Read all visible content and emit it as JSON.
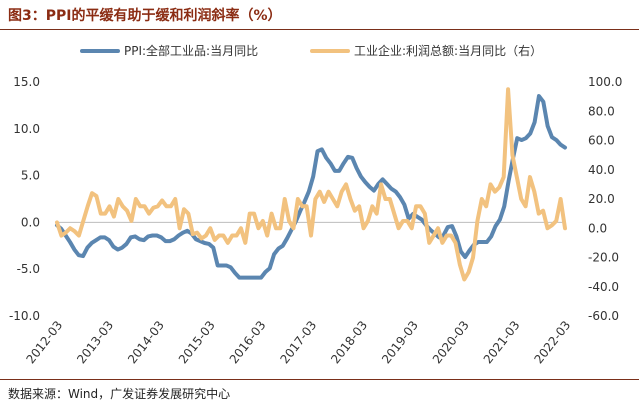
{
  "header": {
    "title": "图3：PPI的平缓有助于缓和利润斜率（%）"
  },
  "footer": {
    "source": "数据来源：Wind，广发证券发展研究中心"
  },
  "chart_data": {
    "type": "line",
    "x_tick_labels": [
      "2012-03",
      "2013-03",
      "2014-03",
      "2015-03",
      "2016-03",
      "2017-03",
      "2018-03",
      "2019-03",
      "2020-03",
      "2021-03",
      "2022-03"
    ],
    "x_start": "2012-03",
    "x_end": "2022-03",
    "left_axis": {
      "ticks": [
        "15.0",
        "10.0",
        "5.0",
        "0.0",
        "-5.0",
        "-10.0"
      ],
      "ylim": [
        -10,
        15
      ]
    },
    "right_axis": {
      "ticks": [
        "100.0",
        "80.0",
        "60.0",
        "40.0",
        "20.0",
        "0.0",
        "-20.0",
        "-40.0",
        "-60.0"
      ],
      "ylim": [
        -60,
        100
      ]
    },
    "series": [
      {
        "name": "PPI:全部工业品:当月同比",
        "axis": "left",
        "color": "#5b86b0",
        "values": [
          -0.3,
          -0.7,
          -1.4,
          -2.1,
          -2.9,
          -3.5,
          -3.6,
          -2.7,
          -2.2,
          -1.9,
          -1.6,
          -1.6,
          -1.9,
          -2.6,
          -2.9,
          -2.7,
          -2.3,
          -1.6,
          -1.5,
          -1.8,
          -1.9,
          -1.5,
          -1.4,
          -1.4,
          -1.6,
          -2.0,
          -2.0,
          -1.8,
          -1.4,
          -1.1,
          -0.9,
          -1.2,
          -1.8,
          -2.0,
          -2.2,
          -2.3,
          -2.7,
          -4.6,
          -4.6,
          -4.6,
          -4.8,
          -5.4,
          -5.9,
          -5.9,
          -5.9,
          -5.9,
          -5.9,
          -5.9,
          -5.3,
          -4.9,
          -3.4,
          -2.8,
          -2.5,
          -1.7,
          -0.8,
          0.1,
          1.2,
          2.2,
          3.3,
          4.9,
          7.6,
          7.8,
          6.9,
          6.3,
          5.5,
          5.5,
          6.3,
          7.0,
          6.9,
          5.8,
          4.9,
          4.3,
          3.8,
          3.4,
          4.1,
          4.6,
          4.1,
          3.6,
          3.3,
          2.7,
          1.9,
          0.4,
          0.9,
          0.6,
          0.3,
          -0.3,
          -0.8,
          -1.2,
          -1.6,
          -1.4,
          -0.5,
          -0.4,
          -1.5,
          -3.1,
          -3.7,
          -3.0,
          -2.4,
          -2.1,
          -2.1,
          -2.1,
          -1.5,
          -0.4,
          0.3,
          1.7,
          4.4,
          6.8,
          9.0,
          8.8,
          9.0,
          9.5,
          10.7,
          13.5,
          12.9,
          10.3,
          9.1,
          8.8,
          8.3,
          8.0
        ]
      },
      {
        "name": "工业企业:利润总额:当月同比（右）",
        "axis": "right",
        "color": "#f2c27f",
        "values": [
          4,
          -5,
          -3,
          0,
          -2,
          -5,
          5,
          15,
          24,
          22,
          10,
          10,
          15,
          8,
          20,
          15,
          12,
          5,
          20,
          15,
          15,
          10,
          14,
          15,
          19,
          15,
          15,
          20,
          0,
          13,
          10,
          -4,
          -3,
          -7,
          -5,
          0,
          -8,
          -5,
          -5,
          -10,
          -5,
          -5,
          0,
          -10,
          10,
          10,
          0,
          5,
          -5,
          10,
          0,
          0,
          20,
          5,
          0,
          20,
          15,
          15,
          -5,
          20,
          25,
          18,
          25,
          20,
          15,
          25,
          30,
          20,
          12,
          15,
          0,
          5,
          15,
          10,
          30,
          20,
          20,
          10,
          0,
          5,
          5,
          0,
          15,
          15,
          10,
          -10,
          -5,
          0,
          -10,
          -5,
          -5,
          -10,
          -25,
          -35,
          -30,
          -20,
          5,
          20,
          15,
          30,
          25,
          28,
          35,
          95,
          50,
          35,
          20,
          15,
          35,
          25,
          10,
          12,
          0,
          2,
          5,
          20,
          0
        ]
      }
    ]
  }
}
